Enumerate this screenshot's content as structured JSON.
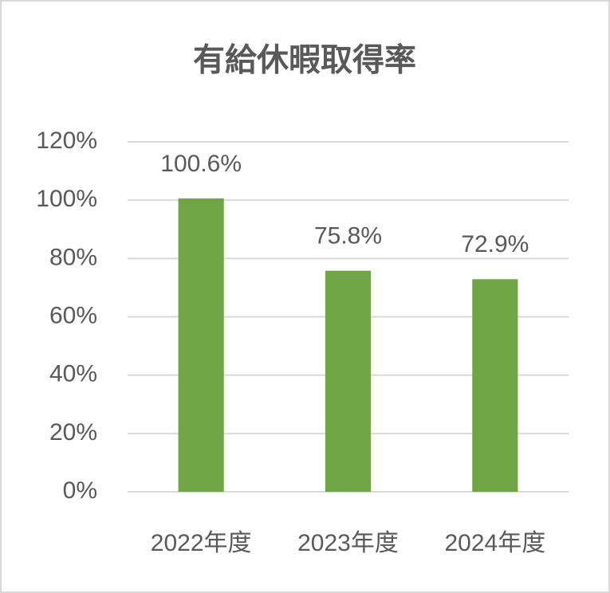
{
  "chart_data": {
    "type": "bar",
    "title": "有給休暇取得率",
    "categories": [
      "2022年度",
      "2023年度",
      "2024年度"
    ],
    "values": [
      100.6,
      75.8,
      72.9
    ],
    "value_labels": [
      "100.6%",
      "75.8%",
      "72.9%"
    ],
    "color": "#70a545",
    "ylim": [
      0,
      120
    ],
    "yticks": [
      {
        "value": 0,
        "label": "0%"
      },
      {
        "value": 20,
        "label": "20%"
      },
      {
        "value": 40,
        "label": "40%"
      },
      {
        "value": 60,
        "label": "60%"
      },
      {
        "value": 80,
        "label": "80%"
      },
      {
        "value": 100,
        "label": "100%"
      },
      {
        "value": 120,
        "label": "120%"
      }
    ],
    "grid": true
  }
}
